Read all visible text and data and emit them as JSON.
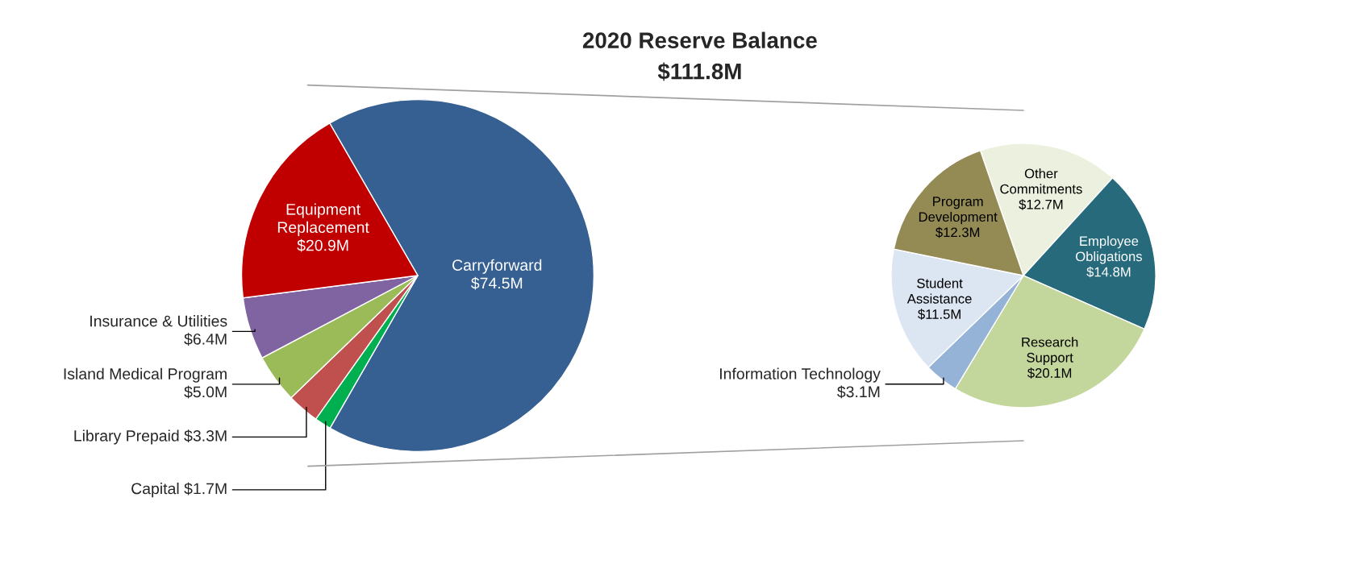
{
  "chart_data": [
    {
      "type": "pie",
      "title": "2020 Reserve Balance",
      "subtitle": "$111.8M",
      "categories": [
        "Carryforward",
        "Capital",
        "Library Prepaid",
        "Island Medical Program",
        "Insurance & Utilities",
        "Equipment Replacement"
      ],
      "values": [
        74.5,
        1.7,
        3.3,
        5.0,
        6.4,
        20.9
      ],
      "value_labels": [
        "$74.5M",
        "$1.7M",
        "$3.3M",
        "$5.0M",
        "$6.4M",
        "$20.9M"
      ],
      "colors": [
        "#376092",
        "#00b050",
        "#c0504d",
        "#9bbb59",
        "#8064a2",
        "#c00000"
      ]
    },
    {
      "type": "pie",
      "categories": [
        "Other Commitments",
        "Employee Obligations",
        "Research Support",
        "Information Technology",
        "Student Assistance",
        "Program Development"
      ],
      "values": [
        12.7,
        14.8,
        20.1,
        3.1,
        11.5,
        12.3
      ],
      "value_labels": [
        "$12.7M",
        "$14.8M",
        "$20.1M",
        "$3.1M",
        "$11.5M",
        "$12.3M"
      ],
      "colors": [
        "#ebf1de",
        "#276a7c",
        "#c3d69b",
        "#95b3d7",
        "#dce6f2",
        "#948a54"
      ]
    }
  ]
}
